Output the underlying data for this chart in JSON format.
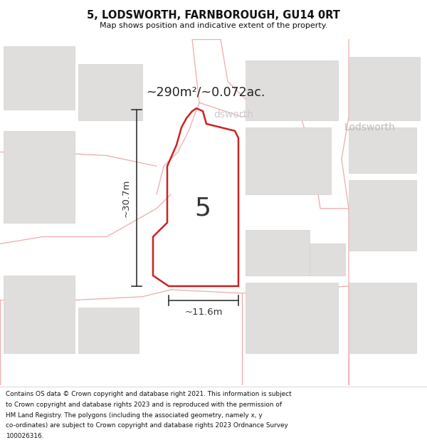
{
  "title": "5, LODSWORTH, FARNBOROUGH, GU14 0RT",
  "subtitle": "Map shows position and indicative extent of the property.",
  "footer_lines": [
    "Contains OS data © Crown copyright and database right 2021. This information is subject",
    "to Crown copyright and database rights 2023 and is reproduced with the permission of",
    "HM Land Registry. The polygons (including the associated geometry, namely x, y",
    "co-ordinates) are subject to Crown copyright and database rights 2023 Ordnance Survey",
    "100026316."
  ],
  "area_label": "~290m²/~0.072ac.",
  "width_label": "~11.6m",
  "height_label": "~30.7m",
  "plot_number": "5",
  "place_label": "Lodsworth",
  "map_bg": "#f8f7f7",
  "grid_color": "#f0aaaa",
  "highlight_color": "#cc2222",
  "block_fill": "#e0dddd",
  "block_stroke": "#cccccc",
  "title_color": "#111111",
  "footer_color": "#111111",
  "annotation_color": "#333333",
  "area_label_color": "#222222",
  "place_label_color": "#bbbbbb"
}
